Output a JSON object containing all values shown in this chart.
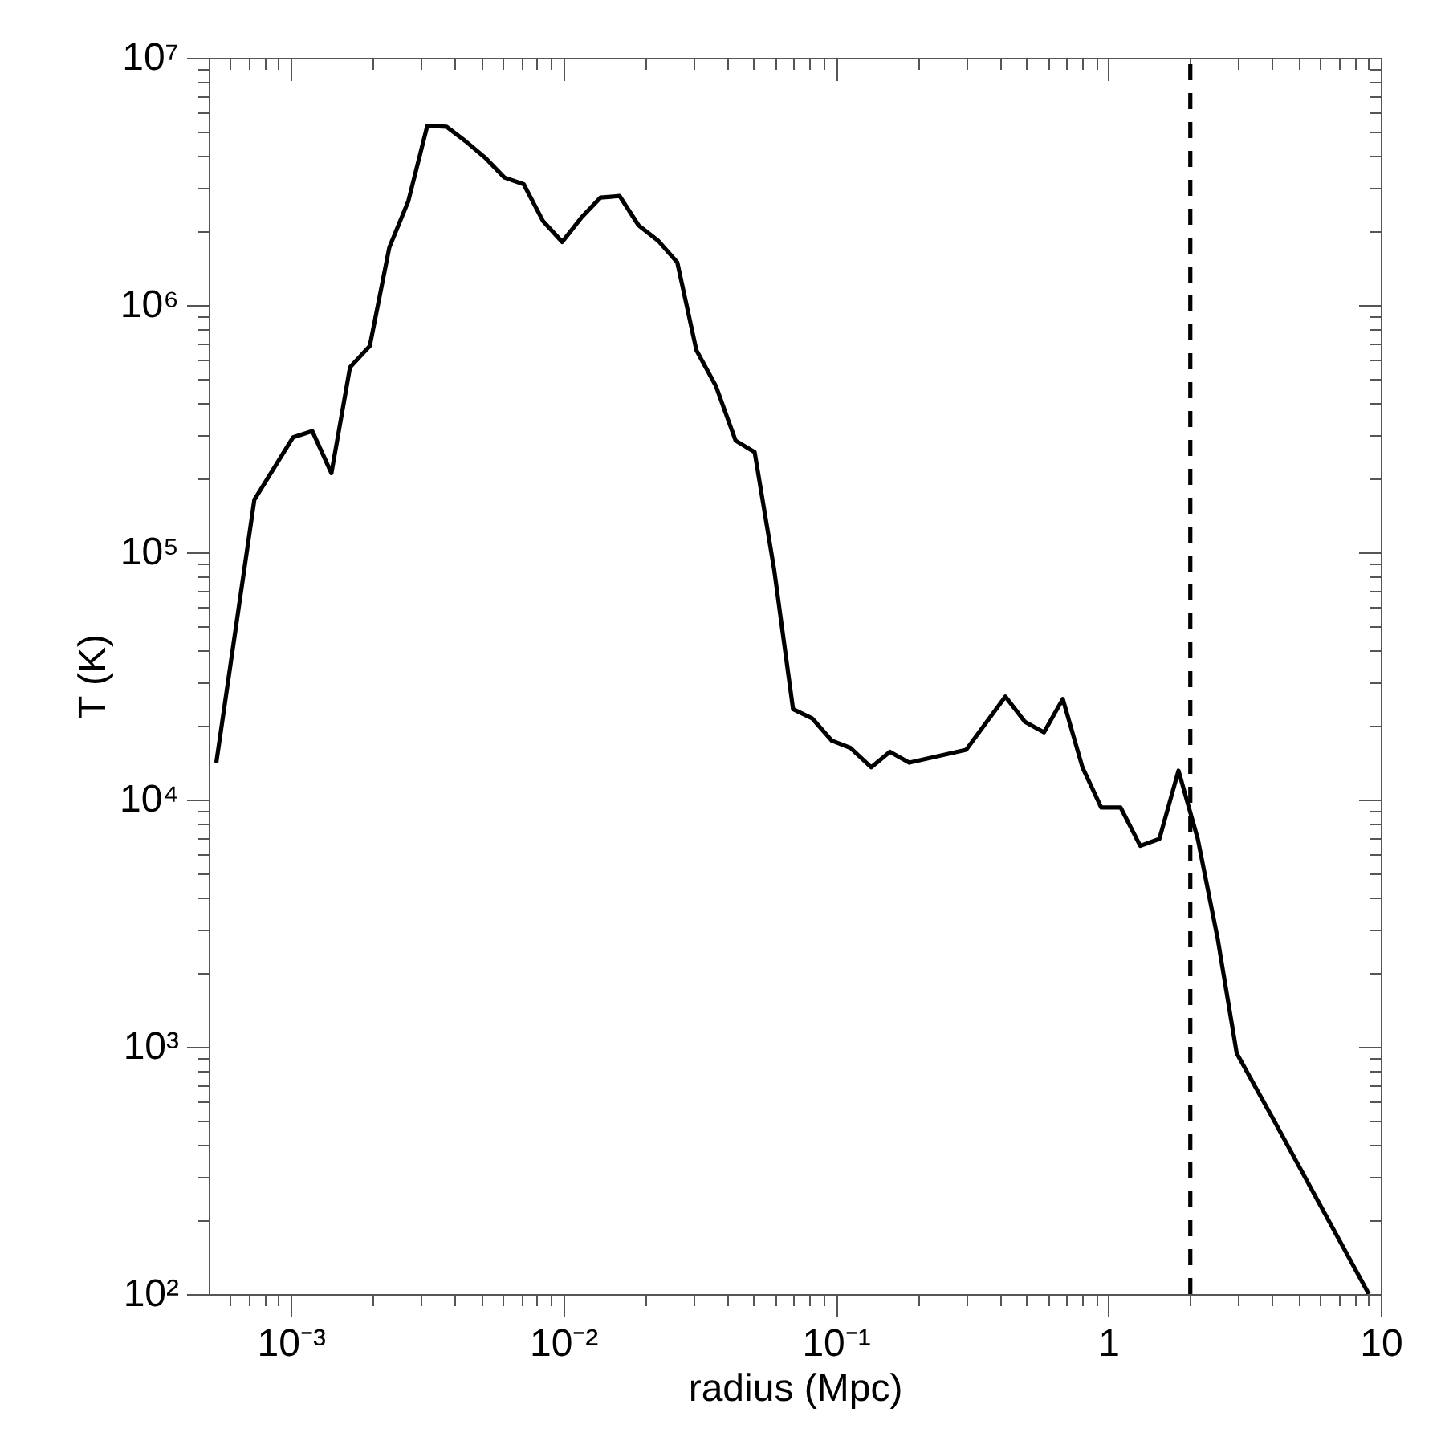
{
  "chart_data": {
    "type": "line",
    "xlabel": "radius (Mpc)",
    "ylabel": "T (K)",
    "log": "xy",
    "grid": false,
    "line_style": "solid",
    "xlim": [
      0.0005,
      10
    ],
    "ylim": [
      100,
      10000000
    ],
    "xticks": [
      {
        "value": 0.0006,
        "label": null
      },
      {
        "value": 0.0007,
        "label": null
      },
      {
        "value": 0.0008,
        "label": null
      },
      {
        "value": 0.0009,
        "label": null
      },
      {
        "value": 0.001,
        "label": "10⁻³"
      },
      {
        "value": 0.002,
        "label": null
      },
      {
        "value": 0.003,
        "label": null
      },
      {
        "value": 0.004,
        "label": null
      },
      {
        "value": 0.005,
        "label": null
      },
      {
        "value": 0.006,
        "label": null
      },
      {
        "value": 0.007,
        "label": null
      },
      {
        "value": 0.008,
        "label": null
      },
      {
        "value": 0.009,
        "label": null
      },
      {
        "value": 0.01,
        "label": "10⁻²"
      },
      {
        "value": 0.02,
        "label": null
      },
      {
        "value": 0.03,
        "label": null
      },
      {
        "value": 0.04,
        "label": null
      },
      {
        "value": 0.05,
        "label": null
      },
      {
        "value": 0.06,
        "label": null
      },
      {
        "value": 0.07,
        "label": null
      },
      {
        "value": 0.08,
        "label": null
      },
      {
        "value": 0.09,
        "label": null
      },
      {
        "value": 0.1,
        "label": "10⁻¹"
      },
      {
        "value": 0.2,
        "label": null
      },
      {
        "value": 0.3,
        "label": null
      },
      {
        "value": 0.4,
        "label": null
      },
      {
        "value": 0.5,
        "label": null
      },
      {
        "value": 0.6,
        "label": null
      },
      {
        "value": 0.7,
        "label": null
      },
      {
        "value": 0.8,
        "label": null
      },
      {
        "value": 0.9,
        "label": null
      },
      1,
      {
        "value": 2,
        "label": null
      },
      {
        "value": 3,
        "label": null
      },
      {
        "value": 4,
        "label": null
      },
      {
        "value": 5,
        "label": null
      },
      {
        "value": 6,
        "label": null
      },
      {
        "value": 7,
        "label": null
      },
      {
        "value": 8,
        "label": null
      },
      {
        "value": 9,
        "label": null
      },
      10
    ],
    "yticks": [
      {
        "value": 100,
        "label": "10²"
      },
      {
        "value": 200,
        "label": null
      },
      {
        "value": 300,
        "label": null
      },
      {
        "value": 400,
        "label": null
      },
      {
        "value": 500,
        "label": null
      },
      {
        "value": 600,
        "label": null
      },
      {
        "value": 700,
        "label": null
      },
      {
        "value": 800,
        "label": null
      },
      {
        "value": 900,
        "label": null
      },
      {
        "value": 1000,
        "label": "10³"
      },
      {
        "value": 2000,
        "label": null
      },
      {
        "value": 3000,
        "label": null
      },
      {
        "value": 4000,
        "label": null
      },
      {
        "value": 5000,
        "label": null
      },
      {
        "value": 6000,
        "label": null
      },
      {
        "value": 7000,
        "label": null
      },
      {
        "value": 8000,
        "label": null
      },
      {
        "value": 9000,
        "label": null
      },
      {
        "value": 10000,
        "label": "10⁴"
      },
      {
        "value": 20000,
        "label": null
      },
      {
        "value": 30000,
        "label": null
      },
      {
        "value": 40000,
        "label": null
      },
      {
        "value": 50000,
        "label": null
      },
      {
        "value": 60000,
        "label": null
      },
      {
        "value": 70000,
        "label": null
      },
      {
        "value": 80000,
        "label": null
      },
      {
        "value": 90000,
        "label": null
      },
      {
        "value": 100000,
        "label": "10⁵"
      },
      {
        "value": 200000,
        "label": null
      },
      {
        "value": 300000,
        "label": null
      },
      {
        "value": 400000,
        "label": null
      },
      {
        "value": 500000,
        "label": null
      },
      {
        "value": 600000,
        "label": null
      },
      {
        "value": 700000,
        "label": null
      },
      {
        "value": 800000,
        "label": null
      },
      {
        "value": 900000,
        "label": null
      },
      {
        "value": 1000000,
        "label": "10⁶"
      },
      {
        "value": 2000000,
        "label": null
      },
      {
        "value": 3000000,
        "label": null
      },
      {
        "value": 4000000,
        "label": null
      },
      {
        "value": 5000000,
        "label": null
      },
      {
        "value": 6000000,
        "label": null
      },
      {
        "value": 7000000,
        "label": null
      },
      {
        "value": 8000000,
        "label": null
      },
      {
        "value": 9000000,
        "label": null
      },
      {
        "value": 10000000,
        "label": "10⁷"
      }
    ],
    "x": [
      0.000533,
      0.000735,
      0.00102,
      0.0012,
      0.00141,
      0.00165,
      0.00195,
      0.0023,
      0.0027,
      0.00317,
      0.00373,
      0.00438,
      0.00515,
      0.00608,
      0.00716,
      0.00842,
      0.00991,
      0.0117,
      0.0137,
      0.0161,
      0.0189,
      0.0223,
      0.0262,
      0.0308,
      0.0363,
      0.0429,
      0.0504,
      0.0594,
      0.0697,
      0.0819,
      0.0968,
      0.113,
      0.135,
      0.158,
      0.186,
      0.301,
      0.419,
      0.495,
      0.581,
      0.681,
      0.804,
      0.942,
      1.11,
      1.31,
      1.54,
      1.81,
      2.13,
      2.52,
      2.96,
      4.09,
      9.04
    ],
    "series": [
      {
        "color": "#000000",
        "values": [
          14100,
          163000,
          292000,
          309000,
          209000,
          560000,
          683000,
          1710000,
          2630000,
          5310000,
          5260000,
          4600000,
          3960000,
          3280000,
          3080000,
          2190000,
          1800000,
          2270000,
          2720000,
          2760000,
          2100000,
          1820000,
          1490000,
          657000,
          471000,
          283000,
          254000,
          85300,
          23200,
          21300,
          17300,
          16200,
          13500,
          15600,
          14100,
          15900,
          26100,
          20600,
          18700,
          25500,
          13500,
          9290,
          9290,
          6500,
          6930,
          13100,
          6930,
          2740,
          942,
          495,
          100
        ]
      }
    ],
    "ref_lines": [
      {
        "axis": "x",
        "value": 2,
        "color": "#000000",
        "line_style": "dashed"
      }
    ]
  }
}
